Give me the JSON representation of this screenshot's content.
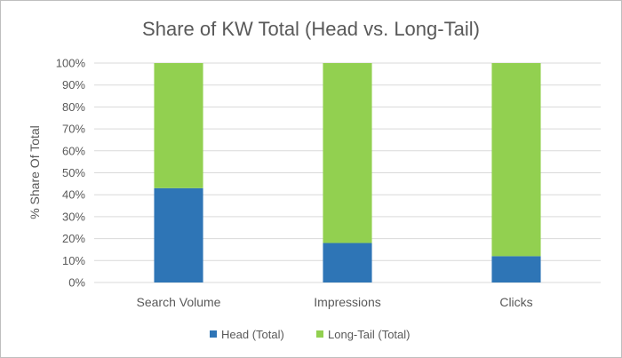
{
  "chart_data": {
    "type": "bar",
    "stacked": true,
    "title": "Share of KW Total (Head vs. Long-Tail)",
    "xlabel": "",
    "ylabel": "% Share Of Total",
    "categories": [
      "Search Volume",
      "Impressions",
      "Clicks"
    ],
    "series": [
      {
        "name": "Head (Total)",
        "values": [
          43,
          18,
          12
        ],
        "color": "#2e75b6"
      },
      {
        "name": "Long-Tail (Total)",
        "values": [
          57,
          82,
          88
        ],
        "color": "#92d050"
      }
    ],
    "ylim": [
      0,
      100
    ],
    "yticks": [
      "0%",
      "10%",
      "20%",
      "30%",
      "40%",
      "50%",
      "60%",
      "70%",
      "80%",
      "90%",
      "100%"
    ],
    "grid": true,
    "legend_position": "bottom"
  }
}
